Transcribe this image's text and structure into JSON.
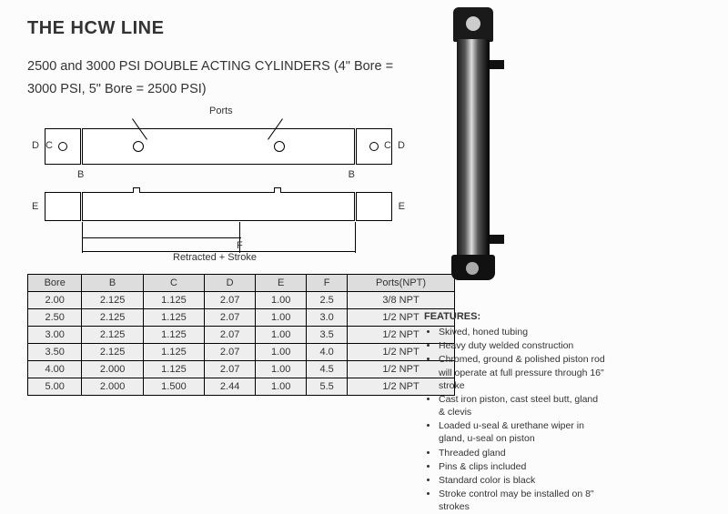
{
  "title": "THE HCW LINE",
  "subtitle_line1": "2500 and 3000 PSI DOUBLE ACTING CYLINDERS (4\" Bore =",
  "subtitle_line2": "3000 PSI, 5\" Bore = 2500 PSI)",
  "diagram": {
    "ports_label": "Ports",
    "retracted_label": "Retracted + Stroke",
    "dim_D_left": "D",
    "dim_C_left": "C",
    "dim_D_right": "D",
    "dim_C_right": "C",
    "dim_B_left": "B",
    "dim_B_right": "B",
    "dim_E_left": "E",
    "dim_E_right": "E",
    "dim_F": "F"
  },
  "table": {
    "headers": [
      "Bore",
      "B",
      "C",
      "D",
      "E",
      "F",
      "Ports(NPT)"
    ],
    "rows": [
      [
        "2.00",
        "2.125",
        "1.125",
        "2.07",
        "1.00",
        "2.5",
        "3/8 NPT"
      ],
      [
        "2.50",
        "2.125",
        "1.125",
        "2.07",
        "1.00",
        "3.0",
        "1/2 NPT"
      ],
      [
        "3.00",
        "2.125",
        "1.125",
        "2.07",
        "1.00",
        "3.5",
        "1/2 NPT"
      ],
      [
        "3.50",
        "2.125",
        "1.125",
        "2.07",
        "1.00",
        "4.0",
        "1/2 NPT"
      ],
      [
        "4.00",
        "2.000",
        "1.125",
        "2.07",
        "1.00",
        "4.5",
        "1/2 NPT"
      ],
      [
        "5.00",
        "2.000",
        "1.500",
        "2.44",
        "1.00",
        "5.5",
        "1/2 NPT"
      ]
    ]
  },
  "features": {
    "heading": "FEATURES:",
    "items": [
      "Skived, honed tubing",
      "Heavy duty welded construction",
      "Chromed, ground & polished piston rod will operate at full pressure through 16\" stroke",
      "Cast iron piston, cast steel butt, gland & clevis",
      "Loaded u-seal & urethane wiper in gland, u-seal on piston",
      "Threaded gland",
      "Pins & clips included",
      "Standard color is black",
      "Stroke control may be installed on 8\" strokes"
    ]
  }
}
